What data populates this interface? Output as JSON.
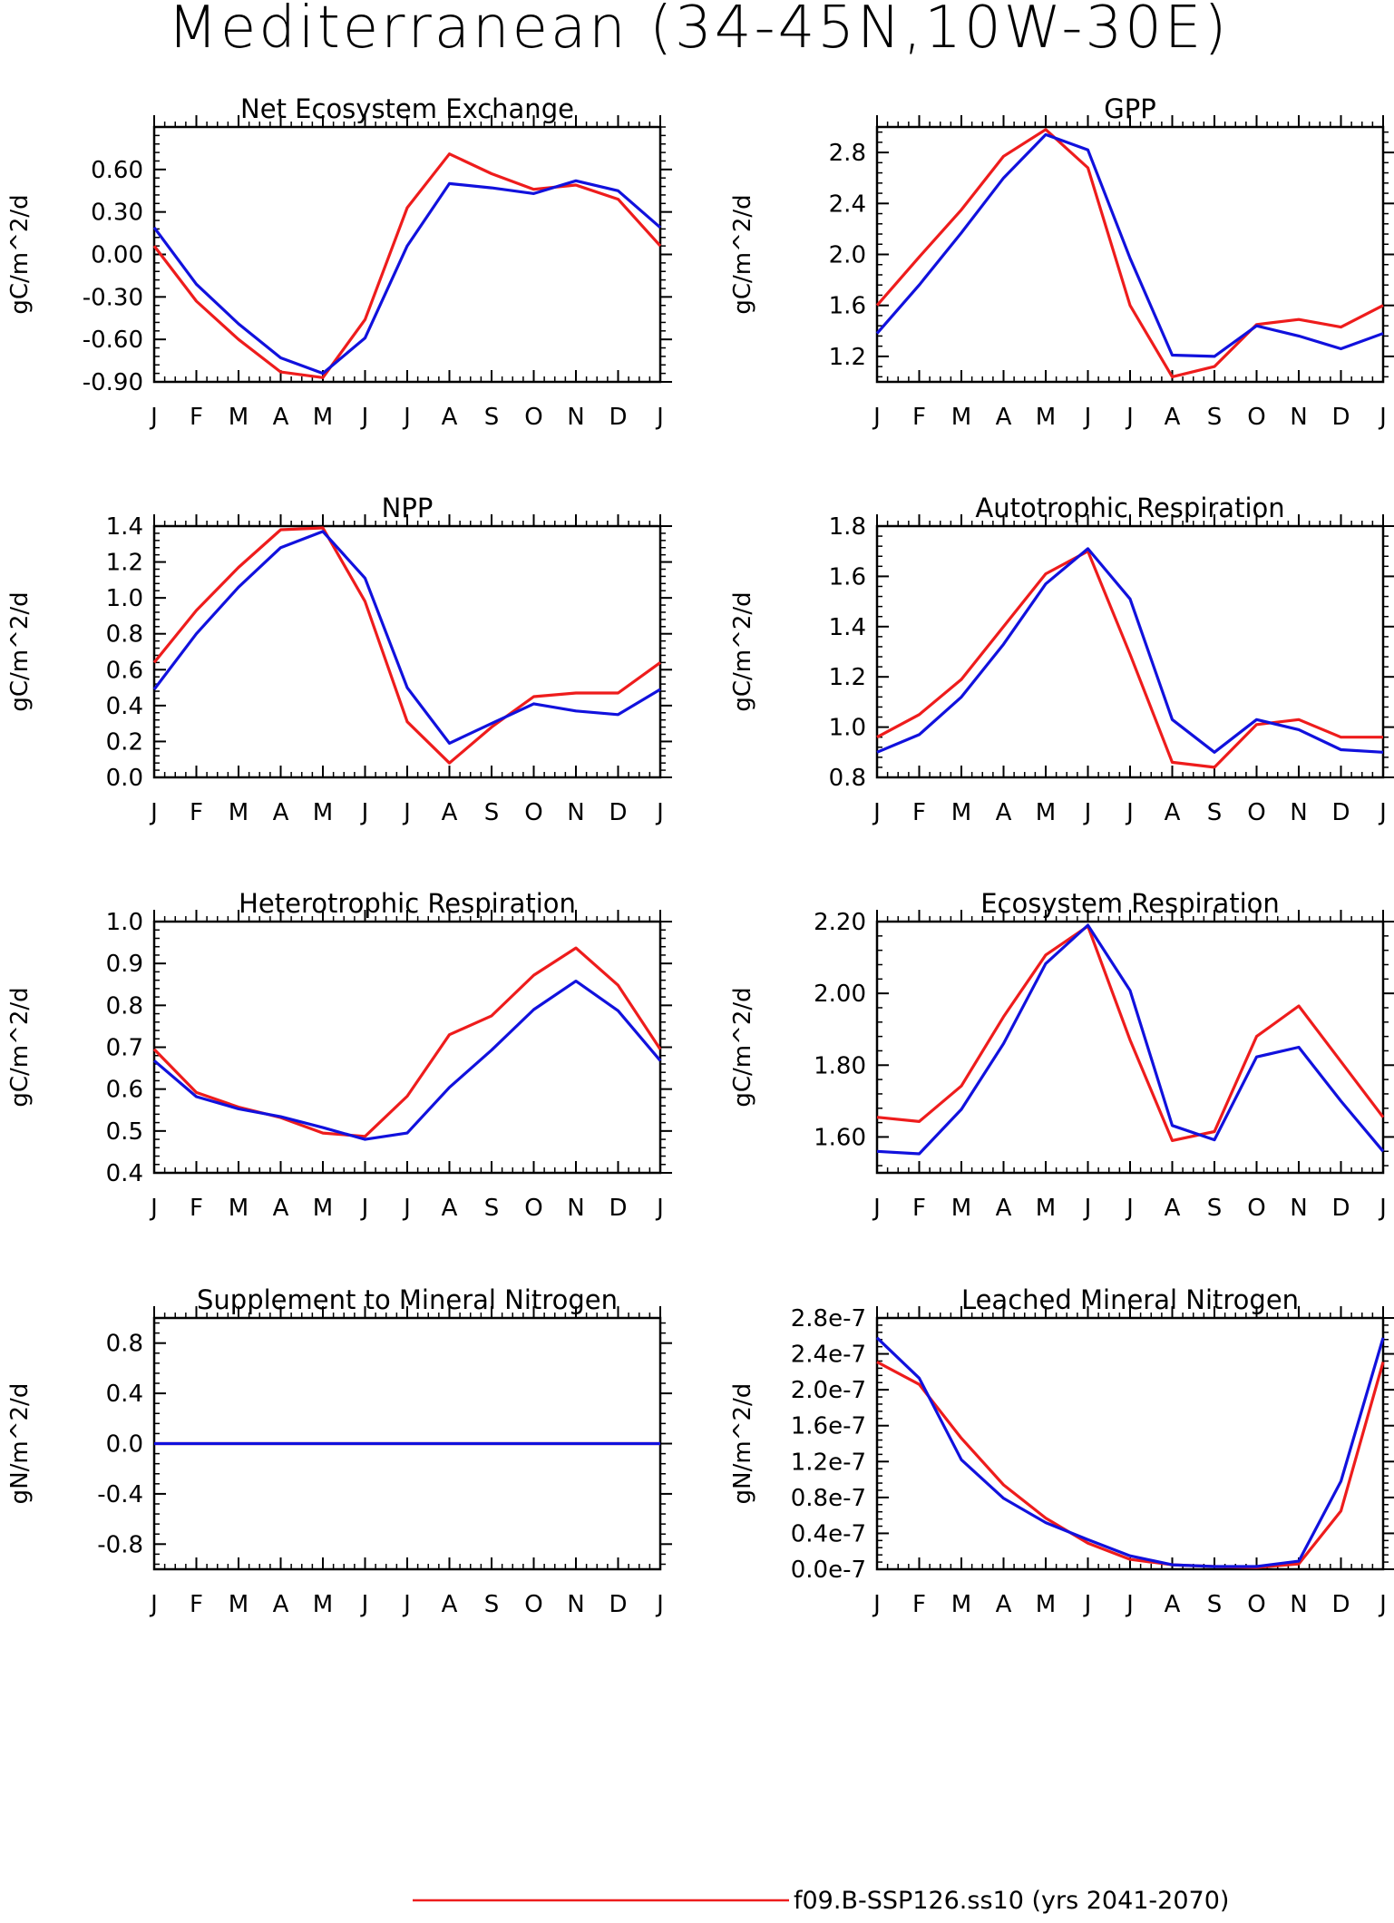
{
  "title": "Mediterranean (34-45N,10W-30E)",
  "months": [
    "J",
    "F",
    "M",
    "A",
    "M",
    "J",
    "J",
    "A",
    "S",
    "O",
    "N",
    "D",
    "J"
  ],
  "colors": {
    "series_red": "#ee1c1c",
    "series_blue": "#1111dd",
    "axis": "#000000"
  },
  "legend": {
    "red_label": "f09.B-SSP126.ss10 (yrs 2041-2070)"
  },
  "chart_data": [
    {
      "type": "line",
      "title": "Net Ecosystem Exchange",
      "ylabel": "gC/m^2/d",
      "ylim": [
        -0.9,
        0.9
      ],
      "yticks": [
        -0.9,
        -0.6,
        -0.3,
        0.0,
        0.3,
        0.6
      ],
      "ytick_labels": [
        "-0.90",
        "-0.60",
        "-0.30",
        "0.00",
        "0.30",
        "0.60"
      ],
      "categories": [
        "J",
        "F",
        "M",
        "A",
        "M",
        "J",
        "J",
        "A",
        "S",
        "O",
        "N",
        "D",
        "J"
      ],
      "series": [
        {
          "color": "#ee1c1c",
          "values": [
            0.06,
            -0.33,
            -0.6,
            -0.83,
            -0.87,
            -0.46,
            0.33,
            0.71,
            0.57,
            0.46,
            0.49,
            0.39,
            0.06
          ]
        },
        {
          "color": "#1111dd",
          "values": [
            0.19,
            -0.21,
            -0.49,
            -0.73,
            -0.84,
            -0.59,
            0.06,
            0.5,
            0.47,
            0.43,
            0.52,
            0.45,
            0.19
          ]
        }
      ]
    },
    {
      "type": "line",
      "title": "GPP",
      "ylabel": "gC/m^2/d",
      "ylim": [
        1.0,
        3.0
      ],
      "yticks": [
        1.2,
        1.6,
        2.0,
        2.4,
        2.8
      ],
      "ytick_labels": [
        "1.2",
        "1.6",
        "2.0",
        "2.4",
        "2.8"
      ],
      "categories": [
        "J",
        "F",
        "M",
        "A",
        "M",
        "J",
        "J",
        "A",
        "S",
        "O",
        "N",
        "D",
        "J"
      ],
      "series": [
        {
          "color": "#ee1c1c",
          "values": [
            1.6,
            1.98,
            2.35,
            2.77,
            2.98,
            2.68,
            1.6,
            1.04,
            1.12,
            1.45,
            1.49,
            1.43,
            1.6
          ]
        },
        {
          "color": "#1111dd",
          "values": [
            1.38,
            1.76,
            2.17,
            2.6,
            2.94,
            2.82,
            1.97,
            1.21,
            1.2,
            1.44,
            1.36,
            1.26,
            1.38
          ]
        }
      ]
    },
    {
      "type": "line",
      "title": "NPP",
      "ylabel": "gC/m^2/d",
      "ylim": [
        0.0,
        1.4
      ],
      "yticks": [
        0.0,
        0.2,
        0.4,
        0.6,
        0.8,
        1.0,
        1.2,
        1.4
      ],
      "ytick_labels": [
        "0.0",
        "0.2",
        "0.4",
        "0.6",
        "0.8",
        "1.0",
        "1.2",
        "1.4"
      ],
      "categories": [
        "J",
        "F",
        "M",
        "A",
        "M",
        "J",
        "J",
        "A",
        "S",
        "O",
        "N",
        "D",
        "J"
      ],
      "series": [
        {
          "color": "#ee1c1c",
          "values": [
            0.64,
            0.93,
            1.17,
            1.38,
            1.39,
            0.98,
            0.31,
            0.08,
            0.28,
            0.45,
            0.47,
            0.47,
            0.64
          ]
        },
        {
          "color": "#1111dd",
          "values": [
            0.49,
            0.8,
            1.06,
            1.28,
            1.37,
            1.11,
            0.5,
            0.19,
            0.3,
            0.41,
            0.37,
            0.35,
            0.49
          ]
        }
      ]
    },
    {
      "type": "line",
      "title": "Autotrophic Respiration",
      "ylabel": "gC/m^2/d",
      "ylim": [
        0.8,
        1.8
      ],
      "yticks": [
        0.8,
        1.0,
        1.2,
        1.4,
        1.6,
        1.8
      ],
      "ytick_labels": [
        "0.8",
        "1.0",
        "1.2",
        "1.4",
        "1.6",
        "1.8"
      ],
      "categories": [
        "J",
        "F",
        "M",
        "A",
        "M",
        "J",
        "J",
        "A",
        "S",
        "O",
        "N",
        "D",
        "J"
      ],
      "series": [
        {
          "color": "#ee1c1c",
          "values": [
            0.96,
            1.05,
            1.19,
            1.4,
            1.61,
            1.7,
            1.29,
            0.86,
            0.84,
            1.01,
            1.03,
            0.96,
            0.96
          ]
        },
        {
          "color": "#1111dd",
          "values": [
            0.9,
            0.97,
            1.12,
            1.33,
            1.57,
            1.71,
            1.51,
            1.03,
            0.9,
            1.03,
            0.99,
            0.91,
            0.9
          ]
        }
      ]
    },
    {
      "type": "line",
      "title": "Heterotrophic Respiration",
      "ylabel": "gC/m^2/d",
      "ylim": [
        0.4,
        1.0
      ],
      "yticks": [
        0.4,
        0.5,
        0.6,
        0.7,
        0.8,
        0.9,
        1.0
      ],
      "ytick_labels": [
        "0.4",
        "0.5",
        "0.6",
        "0.7",
        "0.8",
        "0.9",
        "1.0"
      ],
      "categories": [
        "J",
        "F",
        "M",
        "A",
        "M",
        "J",
        "J",
        "A",
        "S",
        "O",
        "N",
        "D",
        "J"
      ],
      "series": [
        {
          "color": "#ee1c1c",
          "values": [
            0.695,
            0.592,
            0.557,
            0.532,
            0.495,
            0.487,
            0.583,
            0.73,
            0.775,
            0.872,
            0.937,
            0.848,
            0.695
          ]
        },
        {
          "color": "#1111dd",
          "values": [
            0.668,
            0.582,
            0.553,
            0.534,
            0.508,
            0.48,
            0.495,
            0.604,
            0.693,
            0.79,
            0.858,
            0.787,
            0.668
          ]
        }
      ]
    },
    {
      "type": "line",
      "title": "Ecosystem Respiration",
      "ylabel": "gC/m^2/d",
      "ylim": [
        1.5,
        2.2
      ],
      "yticks": [
        1.6,
        1.8,
        2.0,
        2.2
      ],
      "ytick_labels": [
        "1.60",
        "1.80",
        "2.00",
        "2.20"
      ],
      "categories": [
        "J",
        "F",
        "M",
        "A",
        "M",
        "J",
        "J",
        "A",
        "S",
        "O",
        "N",
        "D",
        "J"
      ],
      "series": [
        {
          "color": "#ee1c1c",
          "values": [
            1.655,
            1.643,
            1.742,
            1.935,
            2.107,
            2.187,
            1.87,
            1.59,
            1.615,
            1.88,
            1.965,
            1.81,
            1.655
          ]
        },
        {
          "color": "#1111dd",
          "values": [
            1.56,
            1.553,
            1.677,
            1.86,
            2.083,
            2.19,
            2.008,
            1.632,
            1.592,
            1.823,
            1.85,
            1.7,
            1.56
          ]
        }
      ]
    },
    {
      "type": "line",
      "title": "Supplement to Mineral Nitrogen",
      "ylabel": "gN/m^2/d",
      "ylim": [
        -1.0,
        1.0
      ],
      "yticks": [
        -0.8,
        -0.4,
        0.0,
        0.4,
        0.8
      ],
      "ytick_labels": [
        "-0.8",
        "-0.4",
        "0.0",
        "0.4",
        "0.8"
      ],
      "categories": [
        "J",
        "F",
        "M",
        "A",
        "M",
        "J",
        "J",
        "A",
        "S",
        "O",
        "N",
        "D",
        "J"
      ],
      "series": [
        {
          "color": "#ee1c1c",
          "values": [
            0,
            0,
            0,
            0,
            0,
            0,
            0,
            0,
            0,
            0,
            0,
            0,
            0
          ]
        },
        {
          "color": "#1111dd",
          "values": [
            0,
            0,
            0,
            0,
            0,
            0,
            0,
            0,
            0,
            0,
            0,
            0,
            0
          ]
        }
      ]
    },
    {
      "type": "line",
      "title": "Leached Mineral Nitrogen",
      "ylabel": "gN/m^2/d",
      "ylim": [
        0.0,
        2.8e-07
      ],
      "yticks": [
        0,
        4e-08,
        8e-08,
        1.2e-07,
        1.6e-07,
        2e-07,
        2.4e-07,
        2.8e-07
      ],
      "ytick_labels": [
        "0.0e-7",
        "0.4e-7",
        "0.8e-7",
        "1.2e-7",
        "1.6e-7",
        "2.0e-7",
        "2.4e-7",
        "2.8e-7"
      ],
      "categories": [
        "J",
        "F",
        "M",
        "A",
        "M",
        "J",
        "J",
        "A",
        "S",
        "O",
        "N",
        "D",
        "J"
      ],
      "series": [
        {
          "color": "#ee1c1c",
          "values": [
            2.31e-07,
            2.06e-07,
            1.46e-07,
            9.4e-08,
            5.7e-08,
            2.9e-08,
            1.1e-08,
            5e-09,
            3e-09,
            2e-09,
            6e-09,
            6.5e-08,
            2.31e-07
          ]
        },
        {
          "color": "#1111dd",
          "values": [
            2.58e-07,
            2.13e-07,
            1.22e-07,
            7.9e-08,
            5.2e-08,
            3.3e-08,
            1.5e-08,
            5e-09,
            3e-09,
            3e-09,
            9e-09,
            9.8e-08,
            2.58e-07
          ]
        }
      ]
    }
  ]
}
